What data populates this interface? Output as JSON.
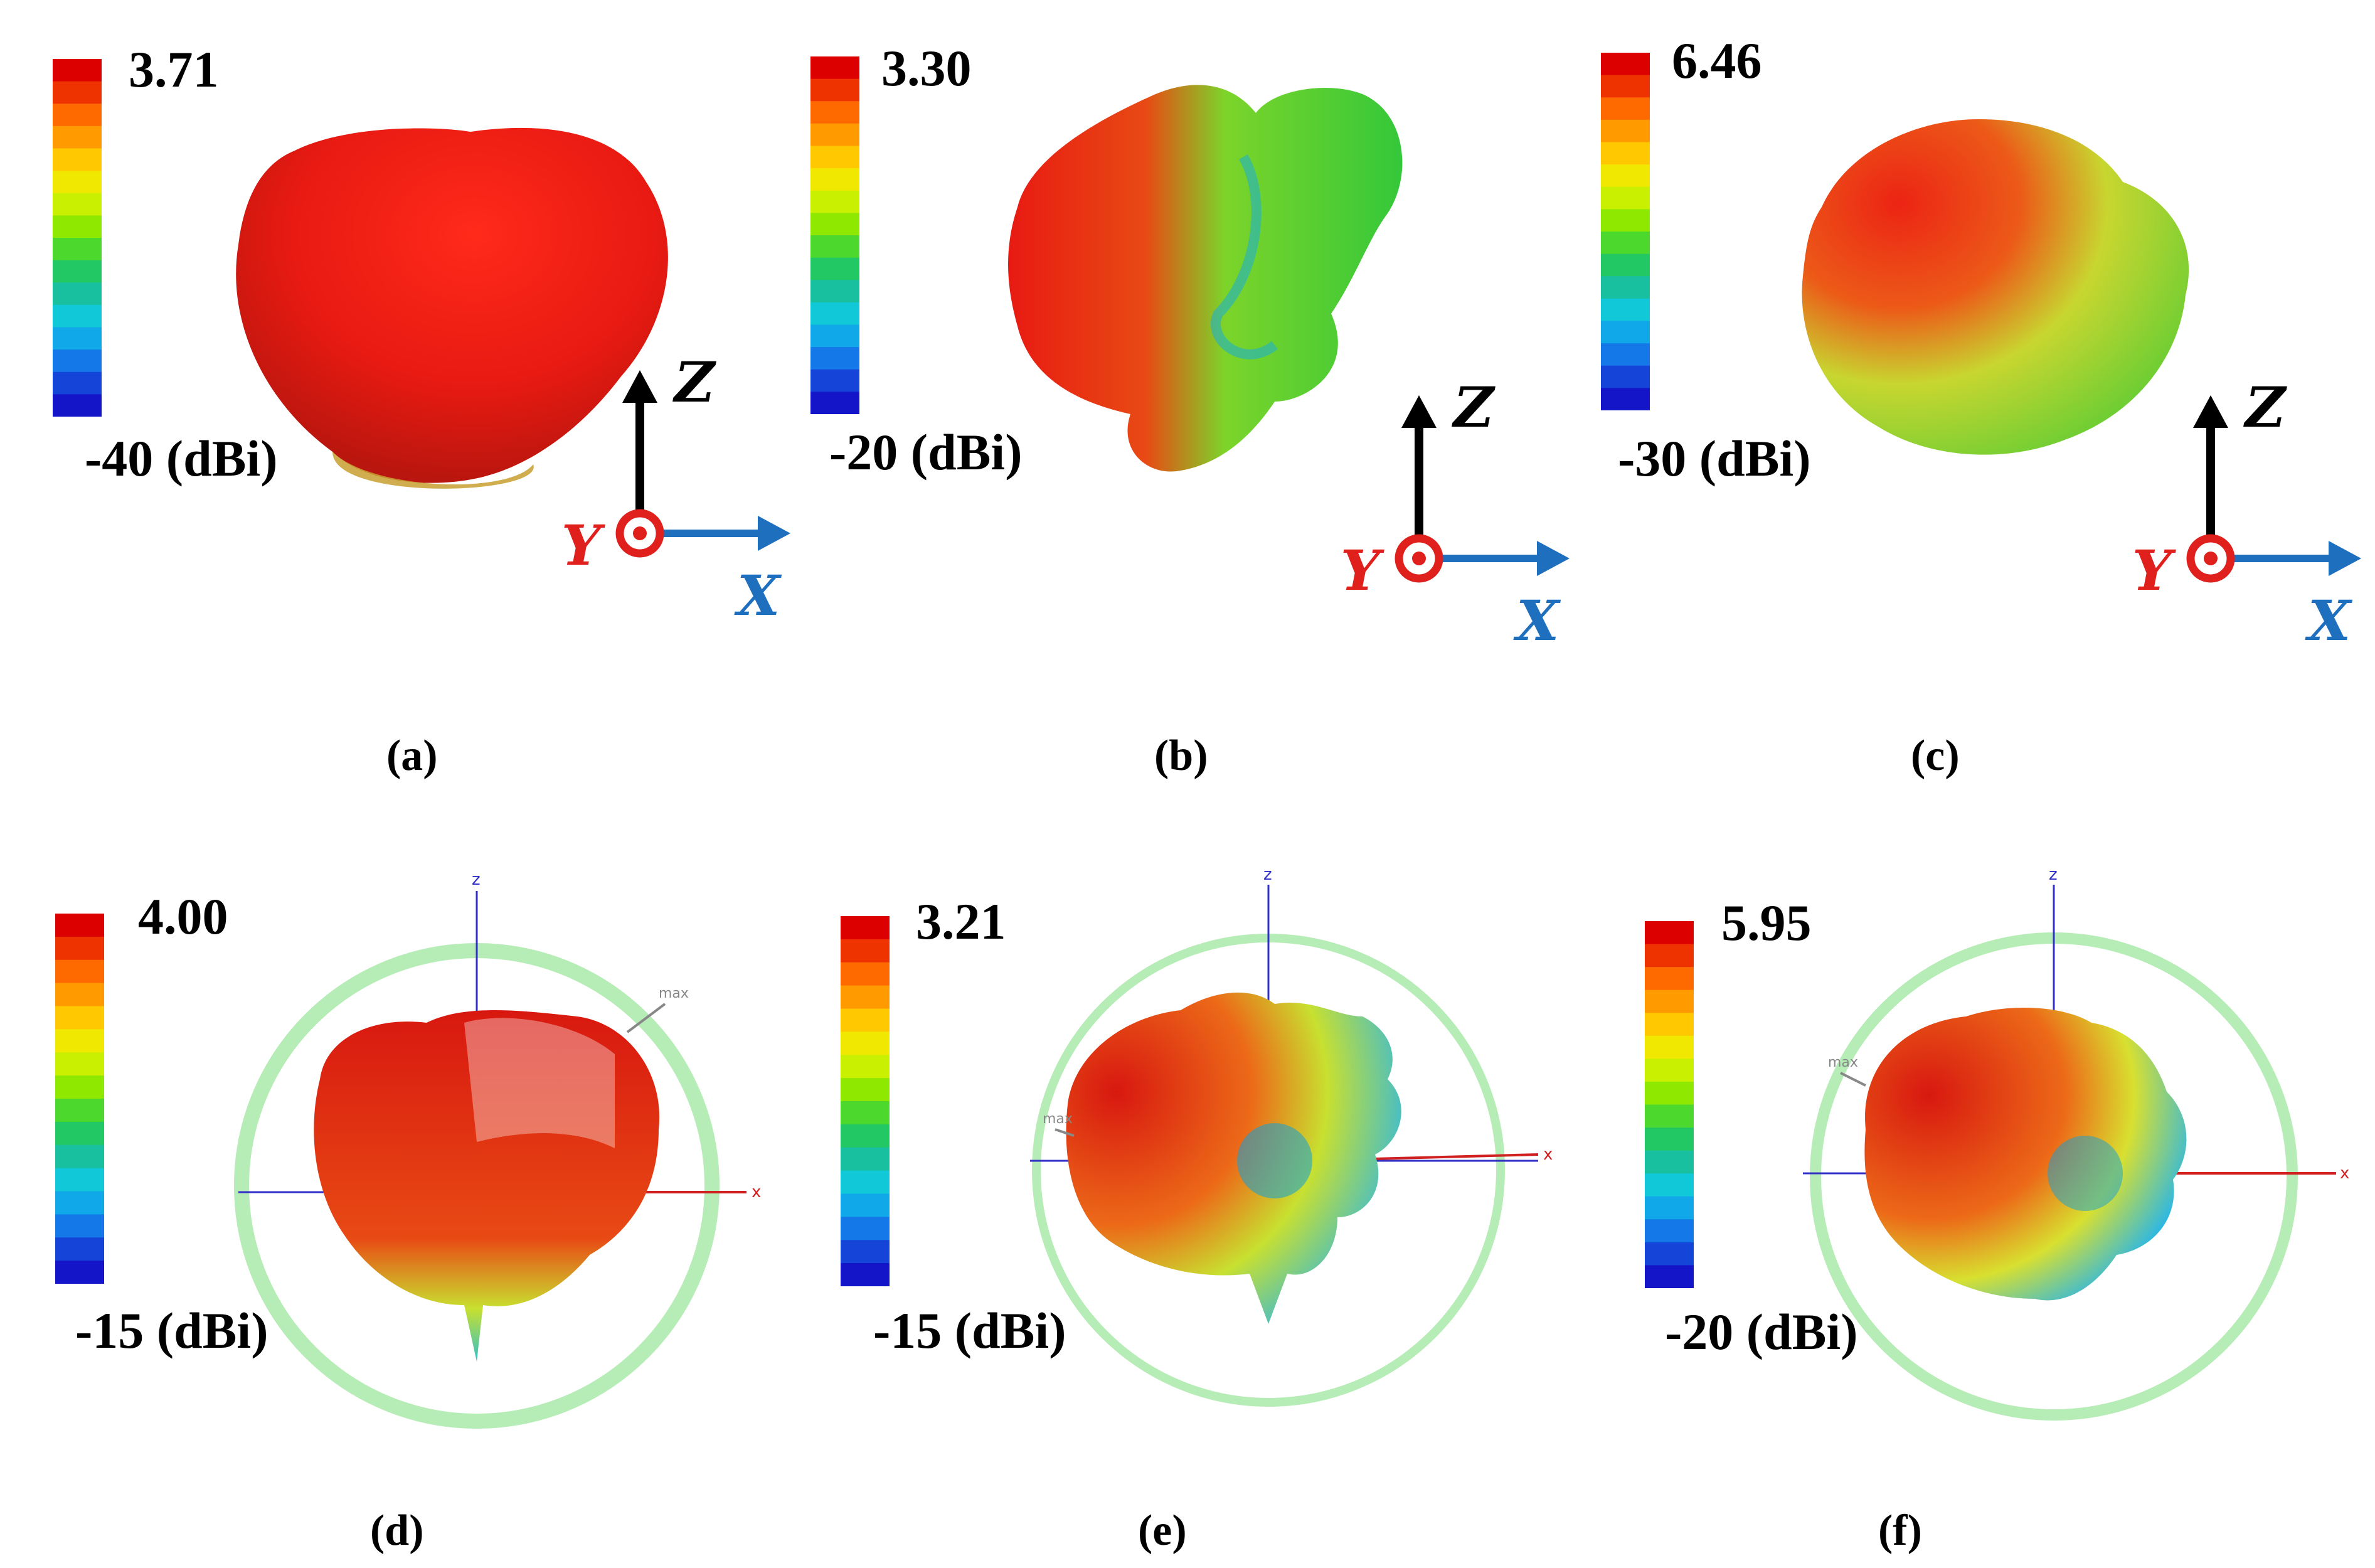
{
  "figure": {
    "panels": [
      {
        "id": "a",
        "caption": "(a)",
        "max_label": "3.71",
        "min_label": "-40 (dBi)",
        "type": "3d-simulated"
      },
      {
        "id": "b",
        "caption": "(b)",
        "max_label": "3.30",
        "min_label": "-20 (dBi)",
        "type": "3d-simulated"
      },
      {
        "id": "c",
        "caption": "(c)",
        "max_label": "6.46",
        "min_label": "-30 (dBi)",
        "type": "3d-simulated"
      },
      {
        "id": "d",
        "caption": "(d)",
        "max_label": "4.00",
        "min_label": "-15 (dBi)",
        "type": "3d-measured"
      },
      {
        "id": "e",
        "caption": "(e)",
        "max_label": "3.21",
        "min_label": "-15 (dBi)",
        "type": "3d-measured"
      },
      {
        "id": "f",
        "caption": "(f)",
        "max_label": "5.95",
        "min_label": "-20 (dBi)",
        "type": "3d-measured"
      }
    ],
    "axes_triad": {
      "z": "Z",
      "y": "Y",
      "x": "X"
    },
    "measured_plot_labels": {
      "z": "z",
      "x": "x",
      "max": "max"
    },
    "colors": {
      "red_axis": "#e0201c",
      "blue_axis": "#1f6fbf",
      "ring": "#b6ecb6",
      "colorbar": [
        "#dd0000",
        "#ee3300",
        "#ff6a00",
        "#ff9a00",
        "#ffc800",
        "#f0e800",
        "#c8f000",
        "#8ee800",
        "#4cd82c",
        "#22c864",
        "#18c0a0",
        "#10c8d8",
        "#10a8e8",
        "#1478e8",
        "#1444d8",
        "#1414c8"
      ]
    }
  }
}
